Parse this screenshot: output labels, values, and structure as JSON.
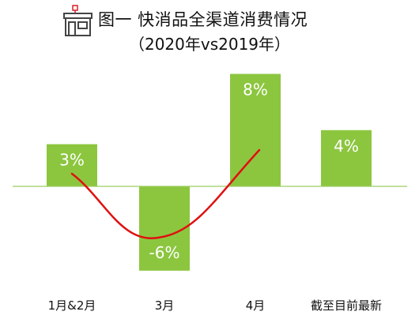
{
  "header": {
    "title": "图一  快消品全渠道消费情况",
    "subtitle": "（2020年vs2019年）",
    "icon": "store-icon"
  },
  "chart_data": {
    "type": "bar",
    "title": "图一  快消品全渠道消费情况",
    "subtitle": "（2020年vs2019年）",
    "categories": [
      "1月&2月",
      "3月",
      "4月",
      "截至目前最新"
    ],
    "series": [
      {
        "values": [
          3,
          -6,
          8,
          4
        ]
      }
    ],
    "data_labels": [
      "3%",
      "-6%",
      "8%",
      "4%"
    ],
    "trend_line": {
      "points_on_categories": [
        0,
        1,
        2
      ],
      "color": "#e01010",
      "shape": "smooth curve"
    },
    "ylim": [
      -6,
      8
    ],
    "grid": false,
    "legend": "none",
    "colors": {
      "bar": "#8cc63f",
      "axis": "#9acd60",
      "trend": "#e01010",
      "icon": "#d9202a"
    }
  }
}
